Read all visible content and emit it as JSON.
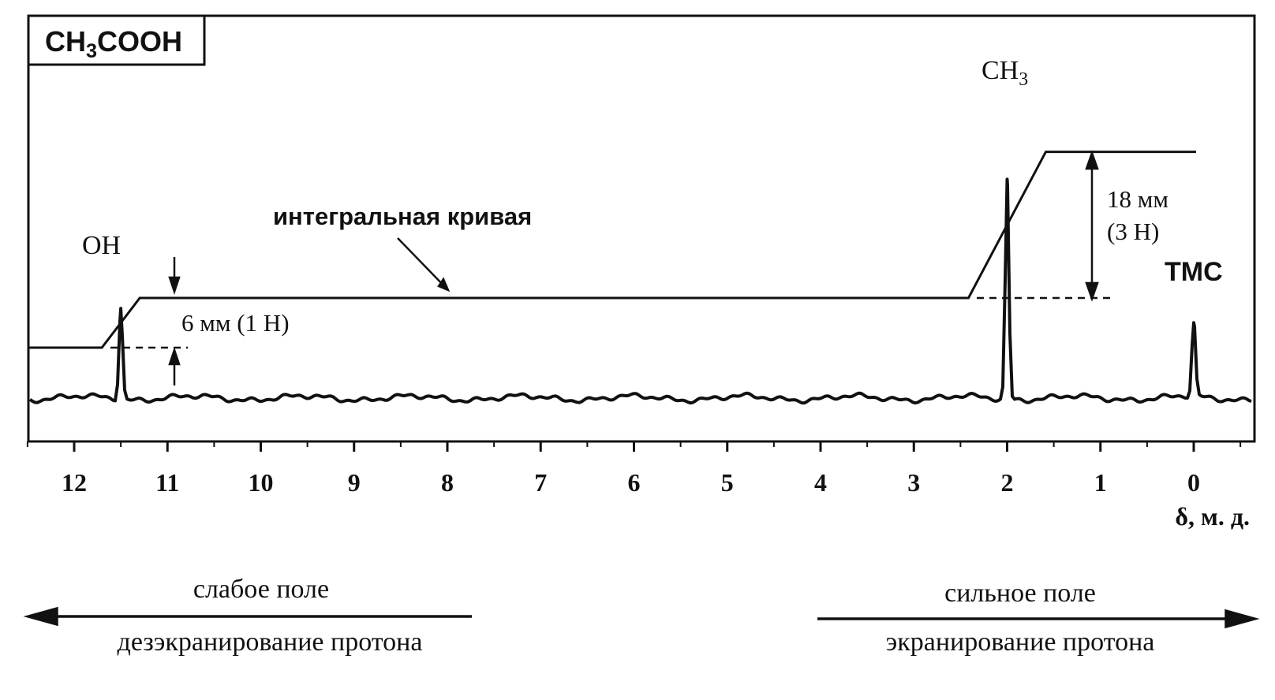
{
  "chart_data": {
    "type": "line",
    "title": "CH3COOH",
    "xlabel": "δ, м. д.",
    "ylabel": "",
    "xlim": [
      12.5,
      -0.6
    ],
    "x_reversed": true,
    "x_ticks": [
      12,
      11,
      10,
      9,
      8,
      7,
      6,
      5,
      4,
      3,
      2,
      1,
      0
    ],
    "grid": false,
    "series": [
      {
        "kind": "spectrum",
        "peaks": [
          {
            "label": "OH",
            "x": 11.5,
            "height_mm": 25
          },
          {
            "label": "CH3",
            "x": 2.0,
            "height_mm": 61
          },
          {
            "label": "TMC",
            "x": 0.0,
            "height_mm": 21
          }
        ]
      },
      {
        "name": "интегральная кривая",
        "kind": "integral",
        "steps": [
          {
            "x": 11.5,
            "rise_mm": 6,
            "label": "6 мм (1 H)"
          },
          {
            "x": 2.0,
            "rise_mm": 18,
            "label": "18 мм",
            "sublabel": "(3 H)"
          }
        ]
      }
    ],
    "annotations": {
      "integral_label": "интегральная кривая",
      "downfield_top": "слабое поле",
      "downfield_bottom": "дезэкранирование протона",
      "upfield_top": "сильное поле",
      "upfield_bottom": "экранирование протона"
    }
  }
}
